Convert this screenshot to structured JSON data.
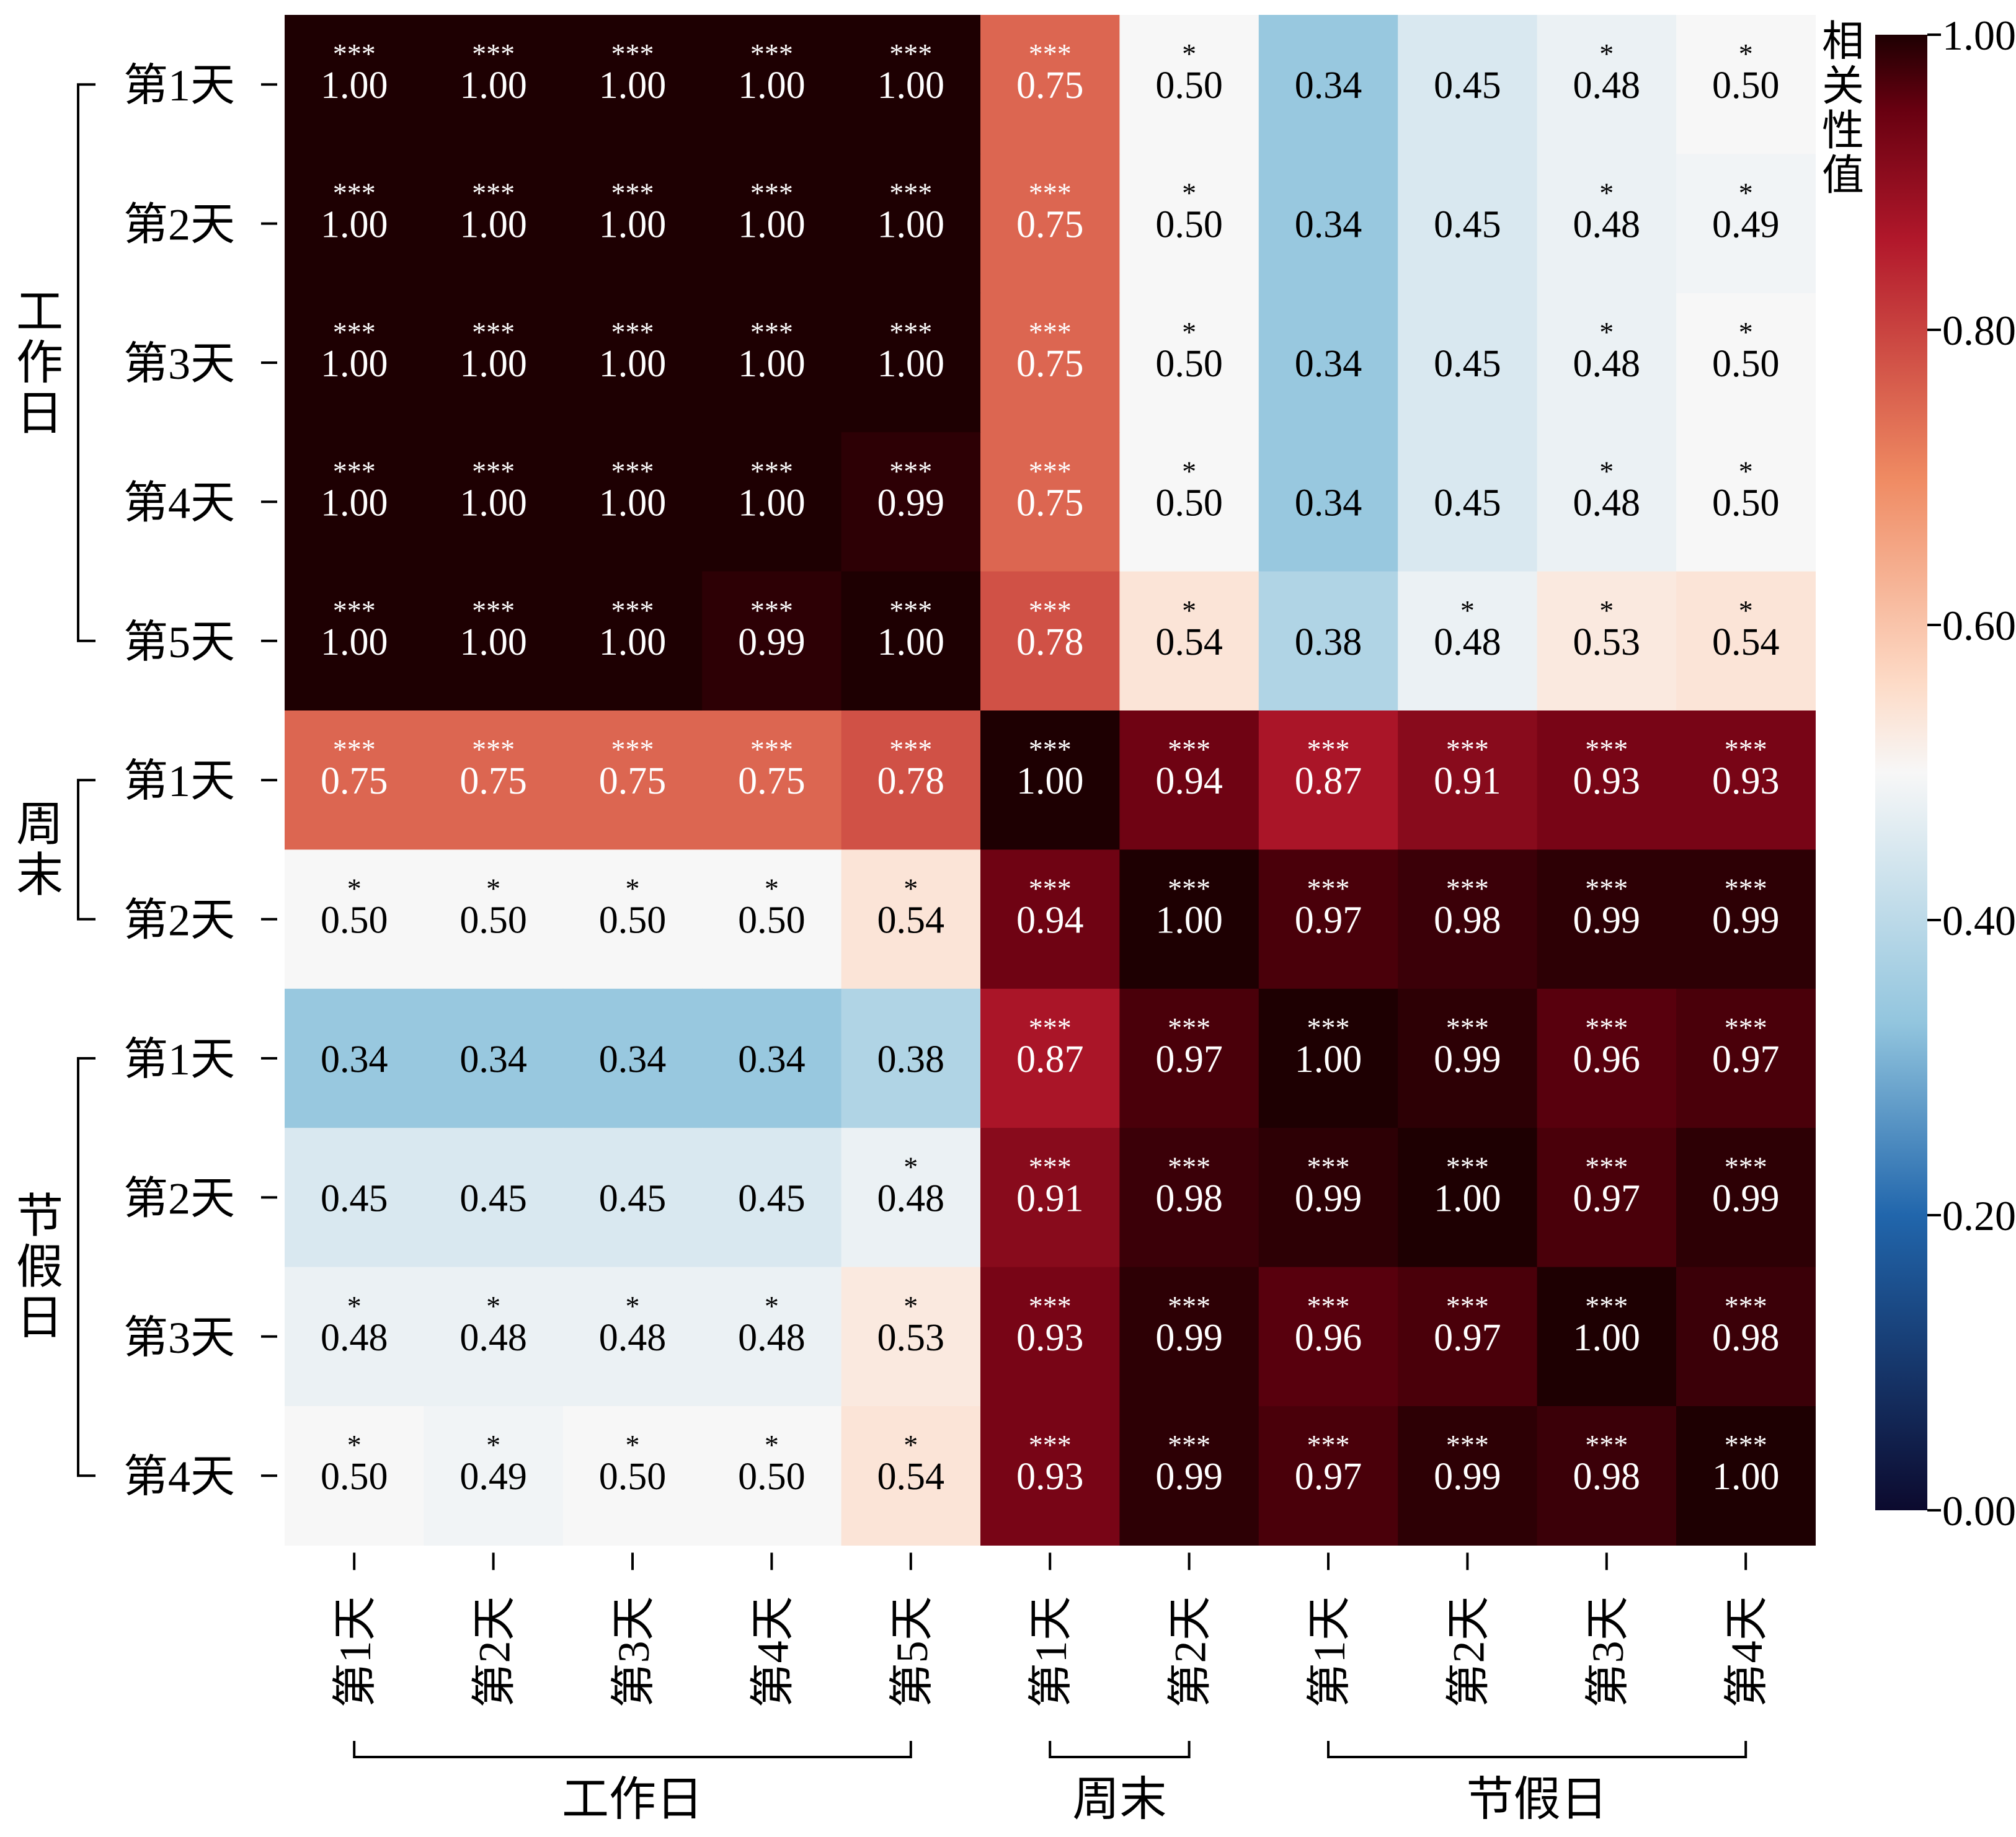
{
  "chart_data": {
    "type": "heatmap",
    "row_labels": [
      "第1天",
      "第2天",
      "第3天",
      "第4天",
      "第5天",
      "第1天",
      "第2天",
      "第1天",
      "第2天",
      "第3天",
      "第4天"
    ],
    "col_labels": [
      "第1天",
      "第2天",
      "第3天",
      "第4天",
      "第5天",
      "第1天",
      "第2天",
      "第1天",
      "第2天",
      "第3天",
      "第4天"
    ],
    "row_groups": [
      {
        "label": "工作日",
        "start": 0,
        "end": 4
      },
      {
        "label": "周末",
        "start": 5,
        "end": 6
      },
      {
        "label": "节假日",
        "start": 7,
        "end": 10
      }
    ],
    "col_groups": [
      {
        "label": "工作日",
        "start": 0,
        "end": 4
      },
      {
        "label": "周末",
        "start": 5,
        "end": 6
      },
      {
        "label": "节假日",
        "start": 7,
        "end": 10
      }
    ],
    "values": [
      [
        1.0,
        1.0,
        1.0,
        1.0,
        1.0,
        0.75,
        0.5,
        0.34,
        0.45,
        0.48,
        0.5
      ],
      [
        1.0,
        1.0,
        1.0,
        1.0,
        1.0,
        0.75,
        0.5,
        0.34,
        0.45,
        0.48,
        0.49
      ],
      [
        1.0,
        1.0,
        1.0,
        1.0,
        1.0,
        0.75,
        0.5,
        0.34,
        0.45,
        0.48,
        0.5
      ],
      [
        1.0,
        1.0,
        1.0,
        1.0,
        0.99,
        0.75,
        0.5,
        0.34,
        0.45,
        0.48,
        0.5
      ],
      [
        1.0,
        1.0,
        1.0,
        0.99,
        1.0,
        0.78,
        0.54,
        0.38,
        0.48,
        0.53,
        0.54
      ],
      [
        0.75,
        0.75,
        0.75,
        0.75,
        0.78,
        1.0,
        0.94,
        0.87,
        0.91,
        0.93,
        0.93
      ],
      [
        0.5,
        0.5,
        0.5,
        0.5,
        0.54,
        0.94,
        1.0,
        0.97,
        0.98,
        0.99,
        0.99
      ],
      [
        0.34,
        0.34,
        0.34,
        0.34,
        0.38,
        0.87,
        0.97,
        1.0,
        0.99,
        0.96,
        0.97
      ],
      [
        0.45,
        0.45,
        0.45,
        0.45,
        0.48,
        0.91,
        0.98,
        0.99,
        1.0,
        0.97,
        0.99
      ],
      [
        0.48,
        0.48,
        0.48,
        0.48,
        0.53,
        0.93,
        0.99,
        0.96,
        0.97,
        1.0,
        0.98
      ],
      [
        0.5,
        0.49,
        0.5,
        0.5,
        0.54,
        0.93,
        0.99,
        0.97,
        0.99,
        0.98,
        1.0
      ]
    ],
    "significance": [
      [
        "***",
        "***",
        "***",
        "***",
        "***",
        "***",
        "*",
        "",
        "",
        "*",
        "*"
      ],
      [
        "***",
        "***",
        "***",
        "***",
        "***",
        "***",
        "*",
        "",
        "",
        "*",
        "*"
      ],
      [
        "***",
        "***",
        "***",
        "***",
        "***",
        "***",
        "*",
        "",
        "",
        "*",
        "*"
      ],
      [
        "***",
        "***",
        "***",
        "***",
        "***",
        "***",
        "*",
        "",
        "",
        "*",
        "*"
      ],
      [
        "***",
        "***",
        "***",
        "***",
        "***",
        "***",
        "*",
        "",
        "*",
        "*",
        "*"
      ],
      [
        "***",
        "***",
        "***",
        "***",
        "***",
        "***",
        "***",
        "***",
        "***",
        "***",
        "***"
      ],
      [
        "*",
        "*",
        "*",
        "*",
        "*",
        "***",
        "***",
        "***",
        "***",
        "***",
        "***"
      ],
      [
        "",
        "",
        "",
        "",
        "",
        "***",
        "***",
        "***",
        "***",
        "***",
        "***"
      ],
      [
        "",
        "",
        "",
        "",
        "*",
        "***",
        "***",
        "***",
        "***",
        "***",
        "***"
      ],
      [
        "*",
        "*",
        "*",
        "*",
        "*",
        "***",
        "***",
        "***",
        "***",
        "***",
        "***"
      ],
      [
        "*",
        "*",
        "*",
        "*",
        "*",
        "***",
        "***",
        "***",
        "***",
        "***",
        "***"
      ]
    ],
    "colorbar": {
      "title": "相关性值",
      "min": 0.0,
      "max": 1.0,
      "ticks": [
        "0.00",
        "0.20",
        "0.40",
        "0.60",
        "0.80",
        "1.00"
      ],
      "colormap": "RdBu_r (dark navy → blue → white → red → dark maroon)",
      "stops": [
        "#0c0a2e",
        "#2166ac",
        "#92c5de",
        "#f7f7f7",
        "#fddbc7",
        "#ef8a62",
        "#b2182b",
        "#670010",
        "#1e0002"
      ]
    },
    "annotation_colors": {
      "on_dark": "#ffffff",
      "on_light": "#000000"
    }
  }
}
